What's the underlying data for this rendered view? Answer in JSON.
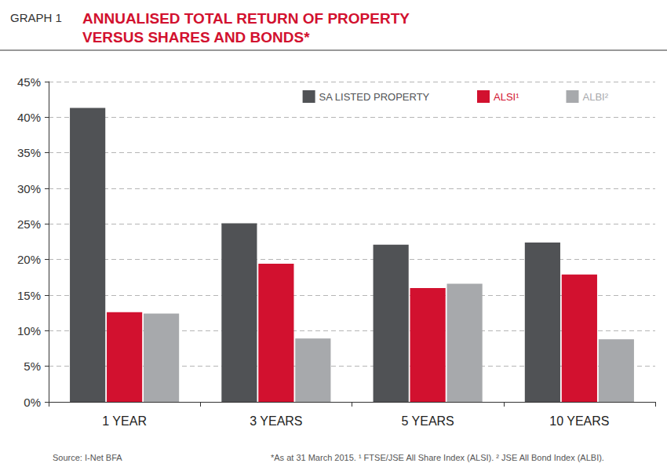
{
  "chart_data": {
    "type": "bar",
    "graph_label": "GRAPH 1",
    "title": "ANNUALISED TOTAL RETURN OF PROPERTY VERSUS SHARES AND BONDS*",
    "source": "Source: I-Net BFA",
    "footnote": "*As at 31 March 2015. ¹ FTSE/JSE All Share Index (ALSI). ² JSE All Bond Index (ALBI).",
    "categories": [
      "1 YEAR",
      "3 YEARS",
      "5 YEARS",
      "10 YEARS"
    ],
    "series": [
      {
        "name": "SA LISTED PROPERTY",
        "color": "#505255",
        "values": [
          41.3,
          25.1,
          22.1,
          22.4
        ]
      },
      {
        "name": "ALSI¹",
        "color": "#d2112f",
        "values": [
          12.6,
          19.4,
          16.0,
          17.9
        ]
      },
      {
        "name": "ALBI²",
        "color": "#a7a9ac",
        "values": [
          12.4,
          8.9,
          16.6,
          8.8
        ]
      }
    ],
    "ylim": [
      0,
      45
    ],
    "yticks": [
      {
        "value": 0,
        "label": "0%"
      },
      {
        "value": 5,
        "label": "5%"
      },
      {
        "value": 10,
        "label": "10%"
      },
      {
        "value": 15,
        "label": "15%"
      },
      {
        "value": 20,
        "label": "20%"
      },
      {
        "value": 25,
        "label": "25%"
      },
      {
        "value": 30,
        "label": "30%"
      },
      {
        "value": 35,
        "label": "35%"
      },
      {
        "value": 40,
        "label": "40%"
      },
      {
        "value": 45,
        "label": "45%"
      }
    ],
    "grid": true,
    "legend": "top-right",
    "data_labels": false
  }
}
